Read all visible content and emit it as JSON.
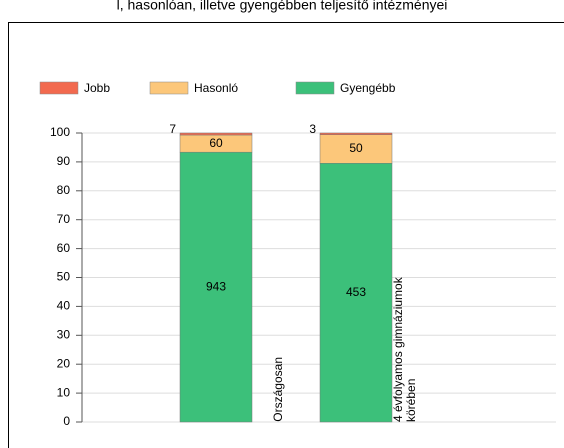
{
  "chart_data": {
    "type": "bar",
    "stacking": "percent",
    "title": "l, hasonlóan, illetve gyengébben teljesítő intézményei",
    "categories": [
      "Országosan",
      "4 évfolyamos gimnáziumok körében"
    ],
    "series": [
      {
        "name": "Gyengébb",
        "color": "#3cc07a",
        "values": [
          943,
          453
        ]
      },
      {
        "name": "Hasonló",
        "color": "#fcc77a",
        "values": [
          60,
          50
        ]
      },
      {
        "name": "Jobb",
        "color": "#f26a4f",
        "values": [
          7,
          3
        ]
      }
    ],
    "legend_order": [
      2,
      1,
      0
    ],
    "ylim": [
      0,
      100
    ],
    "yticks": [
      0,
      10,
      20,
      30,
      40,
      50,
      60,
      70,
      80,
      90,
      100
    ],
    "grid": true
  }
}
